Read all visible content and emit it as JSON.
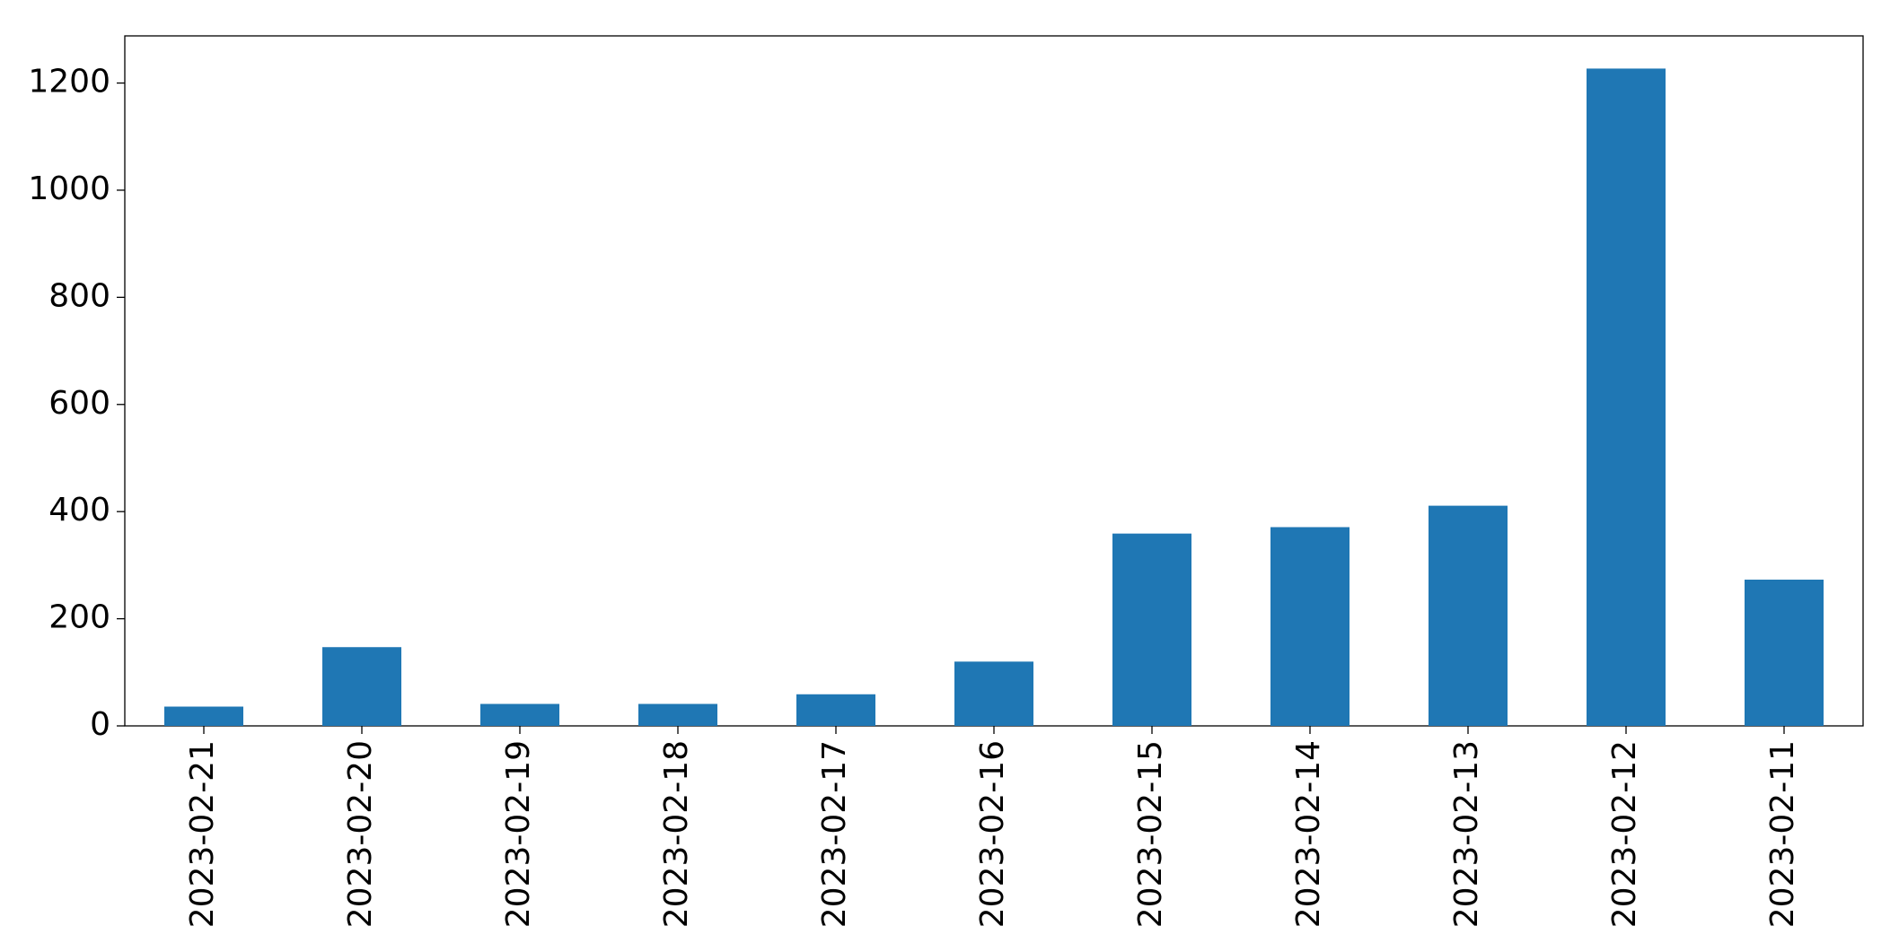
{
  "chart_data": {
    "type": "bar",
    "categories": [
      "2023-02-21",
      "2023-02-20",
      "2023-02-19",
      "2023-02-18",
      "2023-02-17",
      "2023-02-16",
      "2023-02-15",
      "2023-02-14",
      "2023-02-13",
      "2023-02-12",
      "2023-02-11"
    ],
    "values": [
      36,
      147,
      41,
      41,
      59,
      120,
      359,
      371,
      411,
      1227,
      273
    ],
    "color": "#1f77b4",
    "ylim": [
      0,
      1288
    ],
    "yticks": [
      0,
      200,
      400,
      600,
      800,
      1000,
      1200
    ],
    "grid": false
  }
}
